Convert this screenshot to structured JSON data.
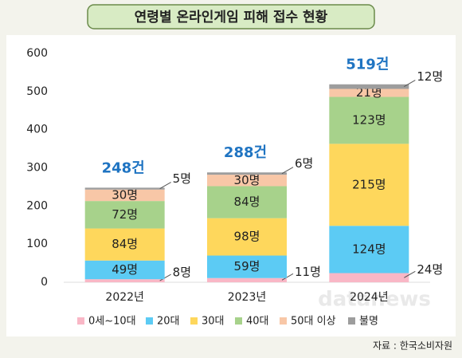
{
  "chart_data": {
    "type": "stacked-bar",
    "title": "연령별 온라인게임 피해 접수 현황",
    "categories": [
      "2022년",
      "2023년",
      "2024년"
    ],
    "series": [
      {
        "name": "0세~10대",
        "color": "#f9b7c6",
        "values": [
          8,
          11,
          24
        ],
        "value_labels": [
          "8명",
          "11명",
          "24명"
        ]
      },
      {
        "name": "20대",
        "color": "#5ccbf4",
        "values": [
          49,
          59,
          124
        ],
        "value_labels": [
          "49명",
          "59명",
          "124명"
        ]
      },
      {
        "name": "30대",
        "color": "#fed75c",
        "values": [
          84,
          98,
          215
        ],
        "value_labels": [
          "84명",
          "98명",
          "215명"
        ]
      },
      {
        "name": "40대",
        "color": "#a7d28b",
        "values": [
          72,
          84,
          123
        ],
        "value_labels": [
          "72명",
          "84명",
          "123명"
        ]
      },
      {
        "name": "50대 이상",
        "color": "#f8c7a7",
        "values": [
          30,
          30,
          21
        ],
        "value_labels": [
          "30명",
          "30명",
          "21명"
        ]
      },
      {
        "name": "불명",
        "color": "#9d9d9d",
        "values": [
          5,
          6,
          12
        ],
        "value_labels": [
          "5명",
          "6명",
          "12명"
        ]
      }
    ],
    "totals": {
      "values": [
        248,
        288,
        519
      ],
      "value_labels": [
        "248건",
        "288건",
        "519건"
      ]
    },
    "ylim": [
      0,
      600
    ],
    "yticks": [
      0,
      100,
      200,
      300,
      400,
      500,
      600
    ],
    "source": "자료 : 한국소비자원",
    "watermark": "datanews"
  }
}
